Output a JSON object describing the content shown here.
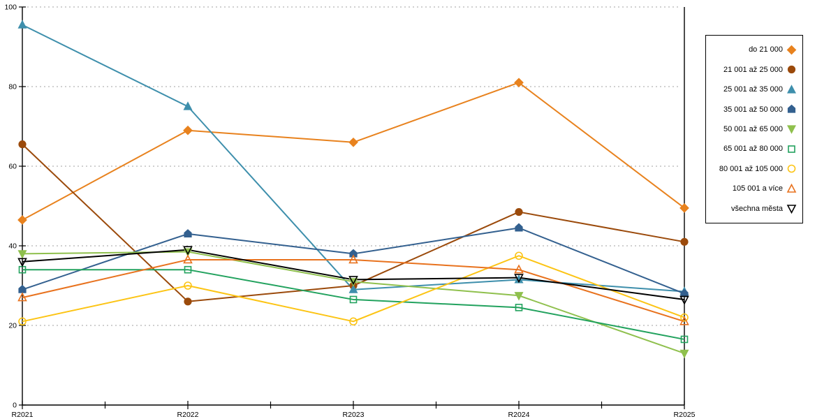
{
  "chart_data": {
    "type": "line",
    "categories": [
      "R2021",
      "R2022",
      "R2023",
      "R2024",
      "R2025"
    ],
    "series": [
      {
        "name": "do 21 000",
        "color": "#E8821E",
        "marker": "diamond",
        "fill": "solid",
        "values": [
          46.5,
          69,
          66,
          81,
          49.5
        ]
      },
      {
        "name": "21 001 až 25 000",
        "color": "#9B4A0B",
        "marker": "circle",
        "fill": "solid",
        "values": [
          65.5,
          26,
          30,
          48.5,
          41
        ]
      },
      {
        "name": "25 001 až 35 000",
        "color": "#3E8FAC",
        "marker": "triangle-up",
        "fill": "solid",
        "values": [
          95.5,
          75,
          29,
          31.5,
          28.5
        ]
      },
      {
        "name": "35 001 až 50 000",
        "color": "#33608F",
        "marker": "pentagon",
        "fill": "solid",
        "values": [
          29,
          43,
          38,
          44.5,
          28
        ]
      },
      {
        "name": "50 001 až 65 000",
        "color": "#8FC04D",
        "marker": "triangle-down",
        "fill": "solid",
        "values": [
          38,
          38.5,
          31,
          27.5,
          13
        ]
      },
      {
        "name": "65 001 až 80 000",
        "color": "#22A25E",
        "marker": "square",
        "fill": "open",
        "values": [
          34,
          34,
          26.5,
          24.5,
          16.5
        ]
      },
      {
        "name": "80 001 až 105 000",
        "color": "#FCC414",
        "marker": "circle",
        "fill": "open",
        "values": [
          21,
          30,
          21,
          37.5,
          22
        ]
      },
      {
        "name": "105 001 a více",
        "color": "#E8721E",
        "marker": "triangle-up",
        "fill": "open",
        "values": [
          27,
          36.5,
          36.5,
          34,
          21
        ]
      },
      {
        "name": "všechna města",
        "color": "#000000",
        "marker": "triangle-down",
        "fill": "open",
        "values": [
          36,
          39,
          31.5,
          32,
          26.5
        ]
      }
    ],
    "title": "",
    "xlabel": "",
    "ylabel": "",
    "ylim": [
      0,
      100
    ],
    "yticks": [
      0,
      20,
      40,
      60,
      80,
      100
    ],
    "grid": "horizontal-dotted",
    "legend_position": "right"
  },
  "colors": {
    "background": "#FFFFFF",
    "axis": "#000000",
    "gridline": "#B3B3B3",
    "legend_border": "#000000"
  }
}
